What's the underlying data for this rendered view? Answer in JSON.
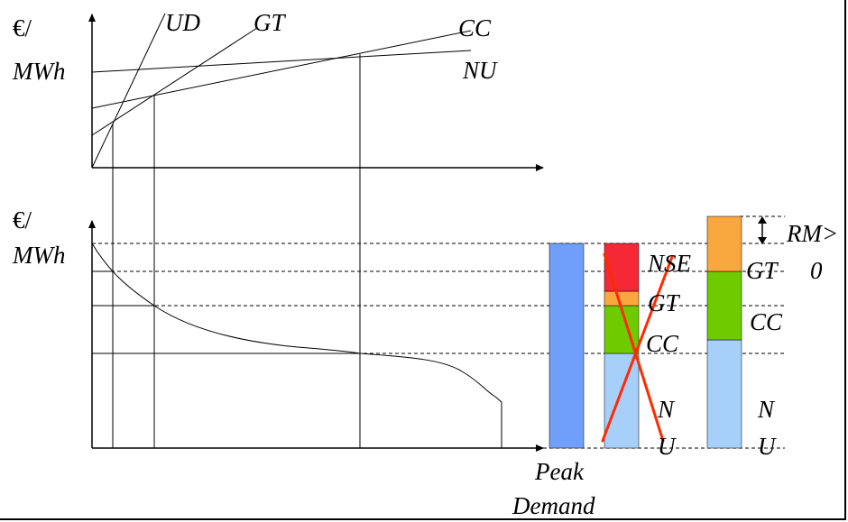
{
  "top_chart": {
    "y_unit_line1": "€/",
    "y_unit_line2": "MWh",
    "lines": {
      "ud": "UD",
      "gt": "GT",
      "cc": "CC",
      "nu": "NU"
    }
  },
  "bottom_chart": {
    "y_unit_line1": "€/",
    "y_unit_line2": "MWh",
    "peak_demand_line1": "Peak",
    "peak_demand_line2": "Demand"
  },
  "bars": {
    "bar2_labels": {
      "nse": "NSE",
      "gt": "GT",
      "cc": "CC",
      "nu_line1": "N",
      "nu_line2": "U"
    },
    "bar3_labels": {
      "rm_line1": "RM>",
      "rm_line2": "0",
      "gt": "GT",
      "cc": "CC",
      "nu_line1": "N",
      "nu_line2": "U"
    }
  },
  "colors": {
    "peak_bar": "#6f9ffa",
    "nu": "#a6cffa",
    "cc": "#6fca00",
    "gt": "#f9a73f",
    "nse": "#f42935",
    "cross": "#ff2a00"
  }
}
